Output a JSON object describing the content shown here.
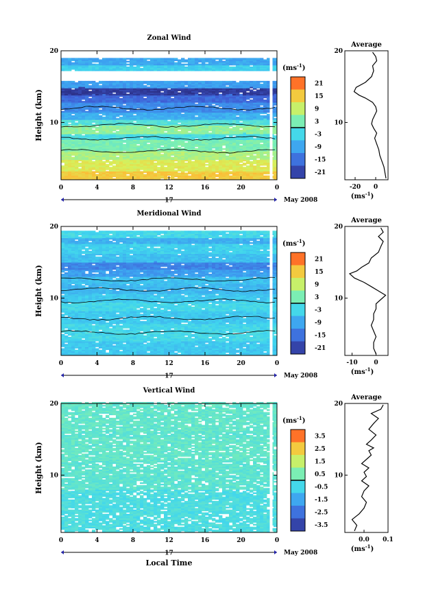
{
  "chart_data": [
    {
      "type": "heatmap",
      "title": "Zonal Wind",
      "ylabel": "Height (km)",
      "xlabel": "",
      "xticks": [
        "0",
        "4",
        "8",
        "12",
        "16",
        "20",
        "0"
      ],
      "yticks": [
        "20",
        "10"
      ],
      "xlim": [
        0,
        24
      ],
      "ylim": [
        2,
        20
      ],
      "date_label": "17",
      "month_label": "May 2008",
      "colorbar": {
        "unit_label": "(ms",
        "unit_exp": "-1",
        "unit_close": ")",
        "ticks": [
          "21",
          "15",
          "9",
          "3",
          "-3",
          "-9",
          "-15",
          "-21"
        ],
        "range": [
          -24,
          24
        ]
      },
      "field_bands": [
        {
          "z0": 2.0,
          "z1": 3.2,
          "value": 15
        },
        {
          "z0": 3.2,
          "z1": 4.8,
          "value": 11
        },
        {
          "z0": 4.8,
          "z1": 6.0,
          "value": 7
        },
        {
          "z0": 6.0,
          "z1": 7.6,
          "value": 3
        },
        {
          "z0": 7.6,
          "z1": 8.4,
          "value": -2
        },
        {
          "z0": 8.4,
          "z1": 9.6,
          "value": 5
        },
        {
          "z0": 9.6,
          "z1": 10.4,
          "value": -1
        },
        {
          "z0": 10.4,
          "z1": 11.4,
          "value": -8
        },
        {
          "z0": 11.4,
          "z1": 12.8,
          "value": -12
        },
        {
          "z0": 12.8,
          "z1": 13.8,
          "value": -16
        },
        {
          "z0": 13.8,
          "z1": 14.8,
          "value": -22
        },
        {
          "z0": 14.8,
          "z1": 15.6,
          "value": -10
        },
        {
          "z0": 17.2,
          "z1": 18.0,
          "value": -4
        },
        {
          "z0": 18.0,
          "z1": 18.8,
          "value": -9
        }
      ],
      "gaps": [
        {
          "z0": 15.6,
          "z1": 17.2
        },
        {
          "z0": 18.8,
          "z1": 20.0
        }
      ],
      "contour_heights": [
        6.0,
        7.8,
        9.6,
        12.0
      ],
      "profile": {
        "title": "Average",
        "xticks": [
          "-20",
          "0"
        ],
        "xvals": [
          -20,
          0
        ],
        "xlim": [
          -30,
          12
        ],
        "ylim": [
          2,
          20
        ],
        "yticks": [
          "20",
          "10"
        ],
        "xlabel": "(ms",
        "x": [
          10,
          9,
          8,
          6,
          4,
          3,
          1,
          -1,
          1,
          -2,
          -4,
          -3,
          -1,
          1,
          0,
          -3,
          -10,
          -16,
          -21,
          -19,
          -10,
          -4,
          -2,
          -3,
          1,
          0,
          -3
        ],
        "z": [
          2.2,
          3.0,
          3.8,
          4.6,
          5.4,
          6.2,
          7.0,
          7.8,
          8.5,
          9.2,
          9.8,
          10.4,
          11.0,
          11.6,
          12.2,
          12.8,
          13.4,
          13.8,
          14.3,
          14.9,
          15.6,
          16.4,
          17.2,
          17.9,
          18.6,
          19.2,
          19.8
        ]
      }
    },
    {
      "type": "heatmap",
      "title": "Meridional Wind",
      "ylabel": "Height (km)",
      "xlabel": "",
      "xticks": [
        "0",
        "4",
        "8",
        "12",
        "16",
        "20",
        "0"
      ],
      "yticks": [
        "20",
        "10"
      ],
      "xlim": [
        0,
        24
      ],
      "ylim": [
        2,
        20
      ],
      "date_label": "17",
      "month_label": "May 2008",
      "colorbar": {
        "unit_label": "(ms",
        "unit_exp": "-1",
        "unit_close": ")",
        "ticks": [
          "21",
          "15",
          "9",
          "3",
          "-3",
          "-9",
          "-15",
          "-21"
        ],
        "range": [
          -24,
          24
        ]
      },
      "field_bands": [
        {
          "z0": 2.0,
          "z1": 4.0,
          "value": -5
        },
        {
          "z0": 4.0,
          "z1": 6.4,
          "value": -3
        },
        {
          "z0": 6.4,
          "z1": 8.2,
          "value": -5
        },
        {
          "z0": 8.2,
          "z1": 9.4,
          "value": -3
        },
        {
          "z0": 9.4,
          "z1": 10.6,
          "value": -5
        },
        {
          "z0": 10.6,
          "z1": 12.0,
          "value": -7
        },
        {
          "z0": 12.0,
          "z1": 13.0,
          "value": -6
        },
        {
          "z0": 13.0,
          "z1": 14.0,
          "value": -10
        },
        {
          "z0": 14.0,
          "z1": 15.0,
          "value": -13
        },
        {
          "z0": 15.0,
          "z1": 16.2,
          "value": -6
        },
        {
          "z0": 16.2,
          "z1": 17.6,
          "value": -4
        },
        {
          "z0": 17.6,
          "z1": 18.4,
          "value": -8
        },
        {
          "z0": 18.4,
          "z1": 19.2,
          "value": -3
        }
      ],
      "gaps": [
        {
          "z0": 19.2,
          "z1": 20.0
        }
      ],
      "contour_heights": [
        5.2,
        7.2,
        9.6,
        11.2,
        12.6
      ],
      "profile": {
        "title": "Average",
        "xticks": [
          "-10",
          "0"
        ],
        "xvals": [
          -10,
          0
        ],
        "xlim": [
          -13,
          5
        ],
        "ylim": [
          2,
          20
        ],
        "yticks": [
          "20",
          "10"
        ],
        "xlabel": "(ms",
        "x": [
          0,
          -1,
          -1,
          0,
          -1,
          -2,
          -1,
          -1,
          0,
          0,
          2,
          4,
          1,
          -2,
          -5,
          -9,
          -11,
          -8,
          -6,
          -3,
          -2,
          1,
          2,
          3,
          1,
          3,
          2
        ],
        "z": [
          2.2,
          3.0,
          3.8,
          4.6,
          5.4,
          6.2,
          7.0,
          7.8,
          8.5,
          9.2,
          9.8,
          10.4,
          11.0,
          11.6,
          12.2,
          12.8,
          13.4,
          13.8,
          14.3,
          14.9,
          15.6,
          16.4,
          17.2,
          17.9,
          18.6,
          19.2,
          19.8
        ]
      }
    },
    {
      "type": "heatmap",
      "title": "Vertical Wind",
      "ylabel": "Height (km)",
      "xlabel": "Local Time",
      "xticks": [
        "0",
        "4",
        "8",
        "12",
        "16",
        "20",
        "0"
      ],
      "yticks": [
        "20",
        "10"
      ],
      "xlim": [
        0,
        24
      ],
      "ylim": [
        2,
        20
      ],
      "date_label": "17",
      "month_label": "May 2008",
      "colorbar": {
        "unit_label": "(ms",
        "unit_exp": "-1",
        "unit_close": ")",
        "ticks": [
          "3.5",
          "2.5",
          "1.5",
          "0.5",
          "-0.5",
          "-1.5",
          "-2.5",
          "-3.5"
        ],
        "range": [
          -4,
          4
        ]
      },
      "field_bands": [
        {
          "z0": 2.0,
          "z1": 8.0,
          "value": -0.3
        },
        {
          "z0": 8.0,
          "z1": 12.0,
          "value": 0.0
        },
        {
          "z0": 12.0,
          "z1": 15.2,
          "value": 0.1
        },
        {
          "z0": 15.2,
          "z1": 16.0,
          "value": 0.0
        },
        {
          "z0": 16.0,
          "z1": 20.0,
          "value": 0.1
        }
      ],
      "gaps": [],
      "contour_heights": [],
      "profile": {
        "title": "Average",
        "xticks": [
          "0.0",
          "0.1"
        ],
        "xvals": [
          0.0,
          0.1
        ],
        "xlim": [
          -0.08,
          0.1
        ],
        "ylim": [
          2,
          20
        ],
        "yticks": [
          "20",
          "10"
        ],
        "xlabel": "(ms",
        "x": [
          -0.04,
          -0.03,
          -0.05,
          -0.02,
          0.0,
          0.01,
          -0.01,
          0.0,
          0.02,
          -0.01,
          0.01,
          0.0,
          0.02,
          -0.01,
          0.01,
          0.03,
          0.02,
          0.04,
          0.01,
          0.03,
          0.05,
          0.02,
          0.04,
          0.06,
          0.03,
          0.07,
          0.08
        ],
        "z": [
          2.2,
          3.0,
          3.8,
          4.6,
          5.4,
          6.2,
          7.0,
          7.8,
          8.5,
          9.2,
          9.8,
          10.4,
          11.0,
          11.6,
          12.2,
          12.8,
          13.4,
          13.8,
          14.3,
          14.9,
          15.6,
          16.4,
          17.2,
          17.9,
          18.6,
          19.2,
          19.8
        ]
      }
    }
  ]
}
